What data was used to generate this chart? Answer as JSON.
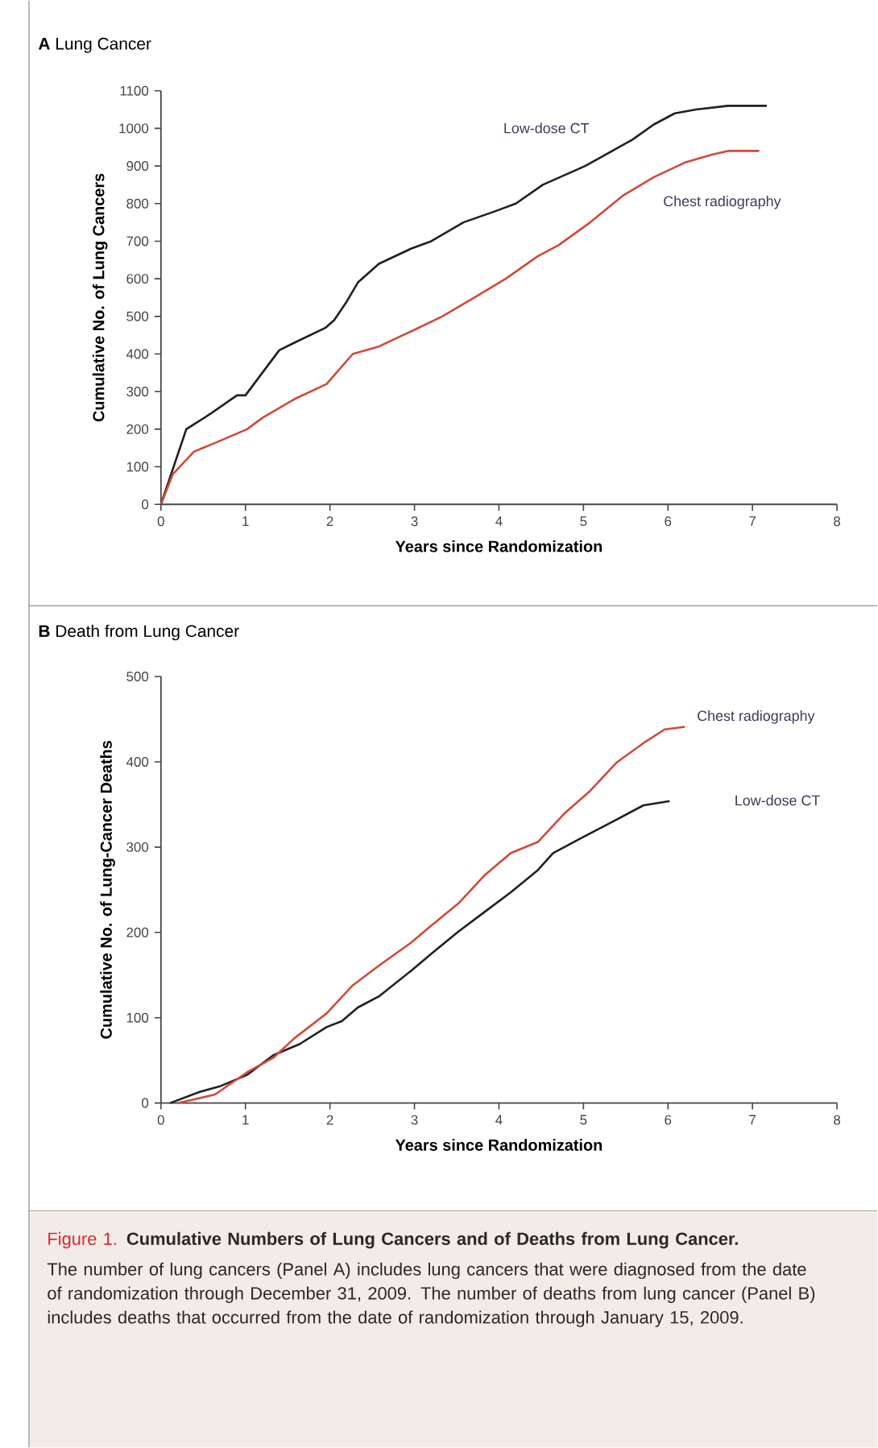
{
  "chart_data": [
    {
      "type": "line",
      "title": "**A**  Lung Cancer",
      "xlabel": "Years since Randomization",
      "ylabel": "Cumulative No. of Lung Cancers",
      "xlim": [
        0,
        8
      ],
      "xticks": [
        0,
        1,
        2,
        3,
        4,
        5,
        6,
        7,
        8
      ],
      "ylim": [
        0,
        1100
      ],
      "yticks": [
        0,
        100,
        200,
        300,
        400,
        500,
        600,
        700,
        800,
        900,
        1000,
        1100
      ],
      "series": [
        {
          "name": "Low-dose CT",
          "color": "#231f20",
          "x": [
            0,
            0.3,
            0.58,
            0.9,
            1.0,
            1.2,
            1.4,
            1.58,
            1.95,
            2.05,
            2.2,
            2.33,
            2.58,
            2.96,
            3.2,
            3.58,
            3.96,
            4.2,
            4.52,
            5.02,
            5.58,
            5.83,
            6.08,
            6.33,
            6.71,
            6.83,
            7.17
          ],
          "values": [
            0,
            200,
            240,
            290,
            290,
            350,
            410,
            430,
            470,
            490,
            540,
            590,
            640,
            680,
            700,
            750,
            780,
            800,
            850,
            900,
            970,
            1010,
            1040,
            1050,
            1060,
            1060,
            1060
          ]
        },
        {
          "name": "Chest radiography",
          "color": "#d2493a",
          "x": [
            0,
            0.14,
            0.39,
            0.71,
            1.02,
            1.2,
            1.58,
            1.96,
            2.27,
            2.58,
            2.96,
            3.33,
            3.71,
            4.08,
            4.46,
            4.71,
            5.08,
            5.46,
            5.83,
            6.21,
            6.52,
            6.71,
            7.08
          ],
          "values": [
            0,
            80,
            140,
            170,
            200,
            230,
            280,
            320,
            400,
            420,
            460,
            500,
            550,
            600,
            660,
            690,
            750,
            820,
            870,
            910,
            930,
            940,
            940
          ]
        }
      ]
    },
    {
      "type": "line",
      "title": "**B**  Death from Lung Cancer",
      "xlabel": "Years since Randomization",
      "ylabel": "Cumulative No. of Lung-Cancer Deaths",
      "xlim": [
        0,
        8
      ],
      "xticks": [
        0,
        1,
        2,
        3,
        4,
        5,
        6,
        7,
        8
      ],
      "ylim": [
        0,
        500
      ],
      "yticks": [
        0,
        100,
        200,
        300,
        400,
        500
      ],
      "series": [
        {
          "name": "Low-dose CT",
          "color": "#231f20",
          "x": [
            0.11,
            0.46,
            0.71,
            1.02,
            1.33,
            1.64,
            1.96,
            2.14,
            2.33,
            2.58,
            2.96,
            3.2,
            3.52,
            3.83,
            4.14,
            4.46,
            4.64,
            4.96,
            5.33,
            5.71,
            6.02
          ],
          "values": [
            0,
            13,
            20,
            33,
            56,
            69,
            89,
            96,
            112,
            125,
            155,
            175,
            201,
            224,
            247,
            273,
            293,
            310,
            329,
            349,
            354
          ]
        },
        {
          "name": "Chest radiography",
          "color": "#d2493a",
          "x": [
            0.21,
            0.64,
            1.02,
            1.33,
            1.58,
            1.96,
            2.27,
            2.58,
            2.96,
            3.2,
            3.52,
            3.83,
            4.14,
            4.46,
            4.77,
            5.08,
            5.39,
            5.71,
            5.96,
            6.2
          ],
          "values": [
            0,
            10,
            36,
            53,
            76,
            105,
            138,
            161,
            188,
            208,
            234,
            267,
            293,
            306,
            339,
            366,
            399,
            422,
            438,
            441
          ]
        }
      ],
      "annotations": [
        "Figure 1.",
        "Cumulative Numbers of Lung Cancers and of Deaths from Lung Cancer.",
        "The number of lung cancers (Panel A) includes lung cancers that were diagnosed from the date of randomization through December 31, 2009. The number of deaths from lung cancer (Panel B) includes deaths that occurred from the date of randomization through January 15, 2009."
      ]
    }
  ]
}
